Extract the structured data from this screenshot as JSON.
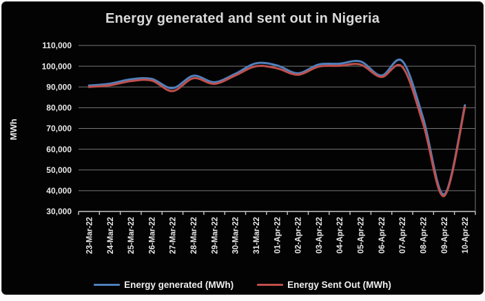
{
  "chart_data": {
    "type": "line",
    "title": "Energy generated and sent out in Nigeria",
    "xlabel": "",
    "ylabel": "MWh",
    "categories": [
      "23-Mar-22",
      "24-Mar-22",
      "25-Mar-22",
      "26-Mar-22",
      "27-Mar-22",
      "28-Mar-22",
      "29-Mar-22",
      "30-Mar-22",
      "31-Mar-22",
      "01-Apr-22",
      "02-Apr-22",
      "03-Apr-22",
      "04-Apr-22",
      "05-Apr-22",
      "06-Apr-22",
      "07-Apr-22",
      "08-Apr-22",
      "09-Apr-22",
      "10-Apr-22"
    ],
    "series": [
      {
        "name": "Energy generated (MWh)",
        "color": "#4F81BD",
        "values": [
          90700,
          91600,
          93700,
          93900,
          89400,
          95400,
          92300,
          96300,
          101400,
          100400,
          96600,
          100800,
          101200,
          102300,
          95500,
          102500,
          75000,
          38200,
          81200
        ]
      },
      {
        "name": "Energy Sent Out (MWh)",
        "color": "#C0504D",
        "values": [
          90000,
          90800,
          92800,
          93100,
          88000,
          94200,
          91500,
          95500,
          100000,
          99000,
          95900,
          99800,
          100200,
          100800,
          94800,
          99700,
          72300,
          37400,
          80400
        ]
      }
    ],
    "ylim": [
      30000,
      110000
    ],
    "ytick_step": 10000,
    "ytick_labels": [
      "110,000",
      "100,000",
      "90,000",
      "80,000",
      "70,000",
      "60,000",
      "50,000",
      "40,000",
      "30,000"
    ],
    "grid": true,
    "smooth_lines": true,
    "legend_position": "bottom",
    "colors": {
      "background": "#030303",
      "title_text": "#d9d9d9",
      "axis_text": "#e8e8e8",
      "gridline": "#787878",
      "axis_line": "#c8c8c8"
    }
  }
}
